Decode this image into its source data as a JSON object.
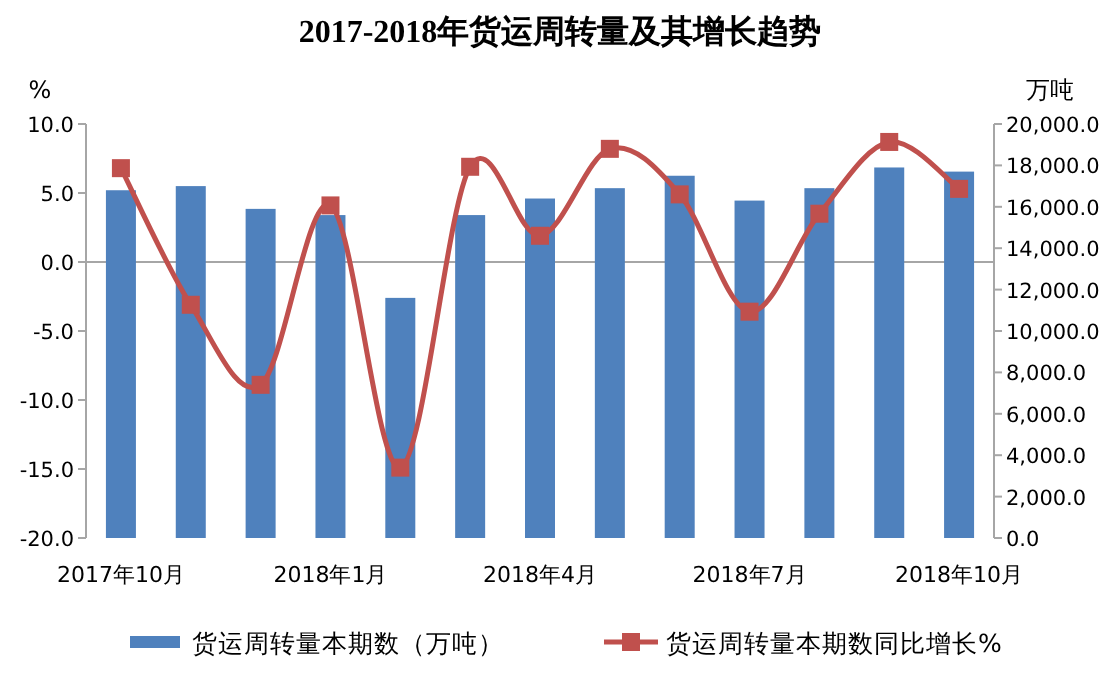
{
  "chart_data": {
    "type": "bar",
    "title": "2017-2018年货运周转量及其增长趋势",
    "ylabel": "%",
    "y2label": "万吨",
    "categories": [
      "2017年10月",
      null,
      null,
      "2018年1月",
      null,
      null,
      "2018年4月",
      null,
      null,
      "2018年7月",
      null,
      null,
      "2018年10月"
    ],
    "series": [
      {
        "name": "货运周转量本期数（万吨）",
        "axis": "y2",
        "color": "#4f81bd",
        "values": [
          16800,
          17000,
          15900,
          15600,
          11600,
          15600,
          16400,
          16900,
          17500,
          16300,
          16900,
          17900,
          17700
        ]
      },
      {
        "name": "货运周转量本期数同比增长%",
        "type": "line",
        "axis": "y",
        "color": "#c0504d",
        "marker": "square",
        "values": [
          6.8,
          -3.1,
          -8.9,
          4.1,
          -14.9,
          6.9,
          1.9,
          8.2,
          4.9,
          -3.6,
          3.5,
          8.7,
          5.3
        ]
      }
    ],
    "ylim": [
      -20,
      10
    ],
    "yticks": [
      {
        "value": -20,
        "label": "-20.0"
      },
      {
        "value": -15,
        "label": "-15.0"
      },
      {
        "value": -10,
        "label": "-10.0"
      },
      {
        "value": -5,
        "label": "-5.0"
      },
      {
        "value": 0,
        "label": "0.0"
      },
      {
        "value": 5,
        "label": "5.0"
      },
      {
        "value": 10,
        "label": "10.0"
      }
    ],
    "y2lim": [
      0,
      20000
    ],
    "y2ticks": [
      {
        "value": 0,
        "label": "0.0"
      },
      {
        "value": 2000,
        "label": "2,000.0"
      },
      {
        "value": 4000,
        "label": "4,000.0"
      },
      {
        "value": 6000,
        "label": "6,000.0"
      },
      {
        "value": 8000,
        "label": "8,000.0"
      },
      {
        "value": 10000,
        "label": "10,000.0"
      },
      {
        "value": 12000,
        "label": "12,000.0"
      },
      {
        "value": 14000,
        "label": "14,000.0"
      },
      {
        "value": 16000,
        "label": "16,000.0"
      },
      {
        "value": 18000,
        "label": "18,000.0"
      },
      {
        "value": 20000,
        "label": "20,000.0"
      }
    ],
    "legend": "bottom"
  }
}
